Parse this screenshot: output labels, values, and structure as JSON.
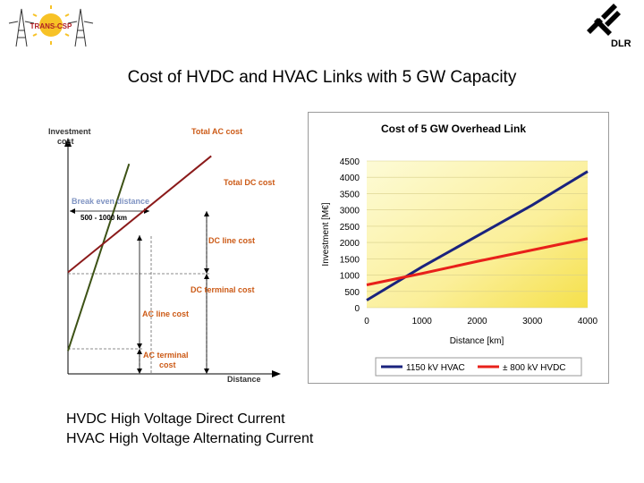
{
  "slide": {
    "title": "Cost of HVDC and HVAC Links with 5 GW Capacity",
    "notes": [
      "HVDC High Voltage Direct Current",
      "HVAC High Voltage Alternating Current"
    ],
    "logo_left_text": "TRANS-CSP",
    "logo_right_text": "DLR"
  },
  "chart_data": [
    {
      "type": "line",
      "schematic": true,
      "ylabel": "Investment cost",
      "xlabel": "Distance",
      "series": [
        {
          "name": "Total AC cost",
          "color": "#3d5216",
          "start": 0.1,
          "slope": 2.75
        },
        {
          "name": "Total DC cost",
          "color": "#8b1a1a",
          "start": 0.44,
          "slope": 0.73
        }
      ],
      "annotations": [
        "Break even distance",
        "500 - 1000 km",
        "DC line cost",
        "DC terminal cost",
        "AC line cost",
        "AC terminal cost"
      ],
      "colors": {
        "series_label": "#cc5a16",
        "break_even": "#7f93c2"
      }
    },
    {
      "type": "line",
      "title": "Cost of 5 GW Overhead Link",
      "xlabel": "Distance [km]",
      "ylabel": "Investment [M€]",
      "xlim": [
        0,
        4000
      ],
      "ylim": [
        0,
        4500
      ],
      "xticks": [
        0,
        1000,
        2000,
        3000,
        4000
      ],
      "yticks": [
        0,
        500,
        1000,
        1500,
        2000,
        2500,
        3000,
        3500,
        4000,
        4500
      ],
      "series": [
        {
          "name": "1150 kV HVAC",
          "color": "#1a237e",
          "x": [
            0,
            1000,
            2000,
            3000,
            4000
          ],
          "y": [
            230,
            1250,
            2200,
            3150,
            4180
          ]
        },
        {
          "name": "± 800 kV HVDC",
          "color": "#e8201a",
          "x": [
            0,
            1000,
            2000,
            3000,
            4000
          ],
          "y": [
            700,
            1050,
            1420,
            1770,
            2120
          ]
        }
      ],
      "grid": true,
      "legend": "bottom"
    }
  ]
}
